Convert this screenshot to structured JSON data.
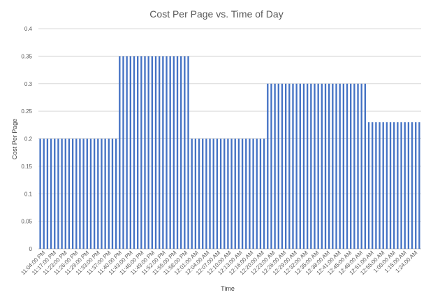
{
  "chart_data": {
    "type": "bar",
    "title": "Cost Per Page vs. Time of Day",
    "xlabel": "Time",
    "ylabel": "Cost Per Page",
    "ylim": [
      0,
      0.4
    ],
    "yticks": [
      "0",
      "0.05",
      "0.1",
      "0.15",
      "0.2",
      "0.25",
      "0.3",
      "0.35",
      "0.4"
    ],
    "grid": true,
    "legend": "none",
    "bar_color": "#4472C4",
    "segments": [
      {
        "count": 22,
        "value": 0.2
      },
      {
        "count": 20,
        "value": 0.35
      },
      {
        "count": 21,
        "value": 0.2
      },
      {
        "count": 28,
        "value": 0.3
      },
      {
        "count": 15,
        "value": 0.23
      }
    ],
    "x_tick_labels": [
      "11:04:00 PM",
      "11:17:00 PM",
      "11:23:00 PM",
      "11:26:00 PM",
      "11:29:00 PM",
      "11:33:00 PM",
      "11:37:00 PM",
      "11:40:00 PM",
      "11:43:00 PM",
      "11:46:00 PM",
      "11:49:00 PM",
      "11:52:00 PM",
      "11:55:00 PM",
      "11:58:00 PM",
      "12:01:00 AM",
      "12:04:00 AM",
      "12:07:00 AM",
      "12:10:00 AM",
      "12:13:00 AM",
      "12:16:00 AM",
      "12:20:00 AM",
      "12:23:00 AM",
      "12:26:00 AM",
      "12:29:00 AM",
      "12:32:00 AM",
      "12:35:00 AM",
      "12:38:00 AM",
      "12:41:00 AM",
      "12:45:00 AM",
      "12:48:00 AM",
      "12:51:00 AM",
      "12:55:00 AM",
      "1:00:00 AM",
      "1:15:00 AM",
      "1:24:00 AM"
    ]
  }
}
